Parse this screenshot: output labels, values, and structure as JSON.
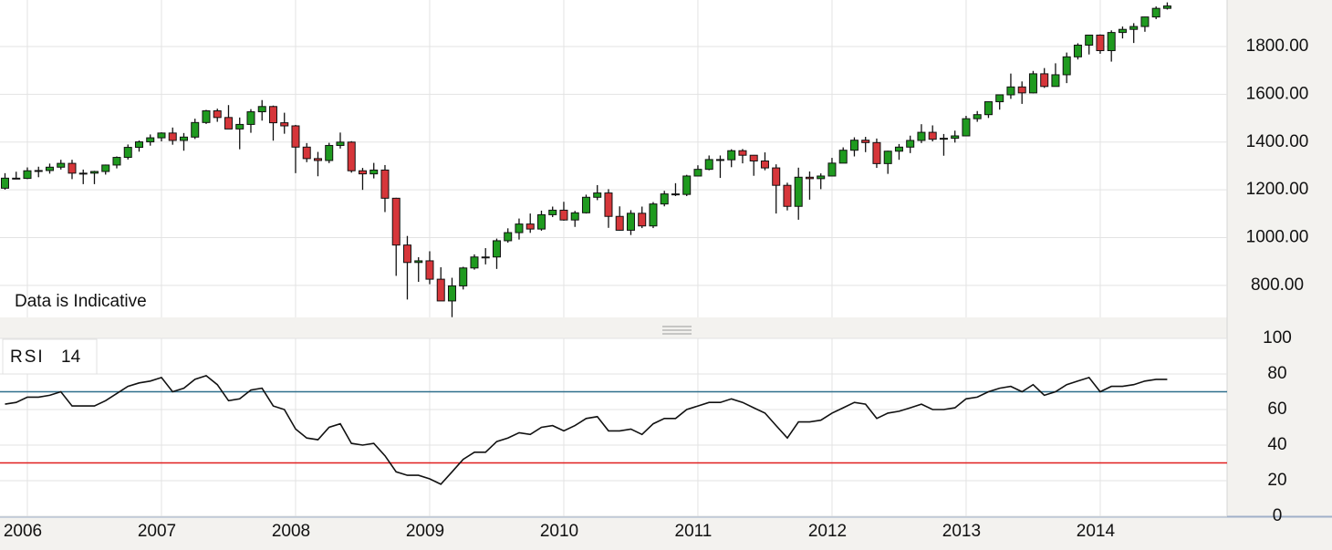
{
  "chart_data": [
    {
      "type": "candlestick",
      "annotation": "Data is Indicative",
      "x": [
        "2005-11",
        "2005-12",
        "2006-01",
        "2006-02",
        "2006-03",
        "2006-04",
        "2006-05",
        "2006-06",
        "2006-07",
        "2006-08",
        "2006-09",
        "2006-10",
        "2006-11",
        "2006-12",
        "2007-01",
        "2007-02",
        "2007-03",
        "2007-04",
        "2007-05",
        "2007-06",
        "2007-07",
        "2007-08",
        "2007-09",
        "2007-10",
        "2007-11",
        "2007-12",
        "2008-01",
        "2008-02",
        "2008-03",
        "2008-04",
        "2008-05",
        "2008-06",
        "2008-07",
        "2008-08",
        "2008-09",
        "2008-10",
        "2008-11",
        "2008-12",
        "2009-01",
        "2009-02",
        "2009-03",
        "2009-04",
        "2009-05",
        "2009-06",
        "2009-07",
        "2009-08",
        "2009-09",
        "2009-10",
        "2009-11",
        "2009-12",
        "2010-01",
        "2010-02",
        "2010-03",
        "2010-04",
        "2010-05",
        "2010-06",
        "2010-07",
        "2010-08",
        "2010-09",
        "2010-10",
        "2010-11",
        "2010-12",
        "2011-01",
        "2011-02",
        "2011-03",
        "2011-04",
        "2011-05",
        "2011-06",
        "2011-07",
        "2011-08",
        "2011-09",
        "2011-10",
        "2011-11",
        "2011-12",
        "2012-01",
        "2012-02",
        "2012-03",
        "2012-04",
        "2012-05",
        "2012-06",
        "2012-07",
        "2012-08",
        "2012-09",
        "2012-10",
        "2012-11",
        "2012-12",
        "2013-01",
        "2013-02",
        "2013-03",
        "2013-04",
        "2013-05",
        "2013-06",
        "2013-07",
        "2013-08",
        "2013-09",
        "2013-10",
        "2013-11",
        "2013-12",
        "2014-01",
        "2014-02",
        "2014-03",
        "2014-04",
        "2014-05",
        "2014-06",
        "2014-07"
      ],
      "open": [
        1207,
        1249,
        1248,
        1280,
        1281,
        1295,
        1311,
        1270,
        1270,
        1277,
        1304,
        1336,
        1378,
        1401,
        1418,
        1438,
        1407,
        1421,
        1482,
        1531,
        1503,
        1455,
        1474,
        1527,
        1549,
        1481,
        1468,
        1379,
        1331,
        1323,
        1386,
        1400,
        1280,
        1267,
        1283,
        1165,
        969,
        896,
        903,
        826,
        735,
        798,
        873,
        919,
        919,
        987,
        1021,
        1057,
        1036,
        1096,
        1115,
        1074,
        1104,
        1169,
        1187,
        1089,
        1031,
        1102,
        1049,
        1141,
        1183,
        1181,
        1258,
        1286,
        1327,
        1326,
        1364,
        1345,
        1321,
        1292,
        1219,
        1131,
        1253,
        1247,
        1258,
        1312,
        1366,
        1408,
        1398,
        1310,
        1362,
        1379,
        1407,
        1441,
        1412,
        1416,
        1426,
        1498,
        1515,
        1569,
        1598,
        1631,
        1606,
        1686,
        1633,
        1682,
        1757,
        1806,
        1848,
        1783,
        1859,
        1872,
        1884,
        1924,
        1960
      ],
      "high": [
        1270,
        1276,
        1294,
        1297,
        1310,
        1326,
        1326,
        1285,
        1280,
        1306,
        1340,
        1390,
        1407,
        1432,
        1441,
        1461,
        1438,
        1498,
        1535,
        1540,
        1555,
        1503,
        1538,
        1576,
        1553,
        1523,
        1472,
        1396,
        1359,
        1397,
        1440,
        1404,
        1292,
        1313,
        1304,
        1167,
        1007,
        918,
        943,
        876,
        832,
        878,
        930,
        956,
        996,
        1039,
        1080,
        1101,
        1113,
        1130,
        1150,
        1112,
        1180,
        1220,
        1203,
        1131,
        1115,
        1130,
        1149,
        1196,
        1228,
        1263,
        1303,
        1344,
        1344,
        1370,
        1371,
        1346,
        1357,
        1307,
        1230,
        1293,
        1277,
        1269,
        1334,
        1378,
        1420,
        1422,
        1415,
        1364,
        1392,
        1427,
        1475,
        1470,
        1434,
        1448,
        1510,
        1530,
        1570,
        1598,
        1687,
        1654,
        1698,
        1710,
        1730,
        1775,
        1814,
        1849,
        1851,
        1868,
        1884,
        1898,
        1925,
        1968,
        1985
      ],
      "low": [
        1201,
        1246,
        1245,
        1253,
        1268,
        1285,
        1245,
        1224,
        1224,
        1264,
        1290,
        1327,
        1360,
        1385,
        1403,
        1389,
        1364,
        1413,
        1476,
        1485,
        1455,
        1370,
        1439,
        1490,
        1406,
        1435,
        1270,
        1316,
        1257,
        1312,
        1373,
        1272,
        1200,
        1248,
        1107,
        840,
        741,
        815,
        805,
        735,
        667,
        783,
        866,
        888,
        869,
        979,
        992,
        1020,
        1029,
        1086,
        1071,
        1045,
        1101,
        1157,
        1041,
        1029,
        1011,
        1040,
        1040,
        1131,
        1174,
        1174,
        1257,
        1282,
        1250,
        1295,
        1311,
        1259,
        1282,
        1101,
        1114,
        1075,
        1159,
        1203,
        1258,
        1312,
        1340,
        1358,
        1292,
        1267,
        1326,
        1354,
        1396,
        1403,
        1343,
        1398,
        1426,
        1485,
        1501,
        1536,
        1581,
        1560,
        1604,
        1627,
        1633,
        1647,
        1746,
        1767,
        1770,
        1737,
        1834,
        1815,
        1862,
        1915,
        1955
      ],
      "close": [
        1249,
        1248,
        1280,
        1281,
        1295,
        1311,
        1270,
        1270,
        1277,
        1304,
        1336,
        1378,
        1401,
        1418,
        1438,
        1407,
        1421,
        1482,
        1531,
        1503,
        1455,
        1474,
        1527,
        1549,
        1481,
        1468,
        1379,
        1331,
        1323,
        1386,
        1400,
        1280,
        1267,
        1283,
        1165,
        969,
        896,
        903,
        826,
        735,
        798,
        873,
        919,
        919,
        987,
        1021,
        1057,
        1036,
        1096,
        1115,
        1074,
        1104,
        1169,
        1187,
        1089,
        1031,
        1102,
        1049,
        1141,
        1183,
        1181,
        1258,
        1286,
        1327,
        1326,
        1364,
        1345,
        1321,
        1292,
        1219,
        1131,
        1253,
        1247,
        1258,
        1312,
        1366,
        1408,
        1398,
        1310,
        1362,
        1379,
        1407,
        1441,
        1412,
        1416,
        1426,
        1498,
        1515,
        1569,
        1598,
        1631,
        1606,
        1686,
        1633,
        1682,
        1757,
        1806,
        1848,
        1783,
        1859,
        1872,
        1884,
        1924,
        1960,
        1970
      ],
      "up_color": "#1f9a1f",
      "down_color": "#d6363a",
      "xlim": [
        2005.796,
        2014.946
      ],
      "ylim": [
        666,
        1995
      ],
      "yticks": [
        {
          "value": 800,
          "label": "800.00"
        },
        {
          "value": 1000,
          "label": "1000.00"
        },
        {
          "value": 1200,
          "label": "1200.00"
        },
        {
          "value": 1400,
          "label": "1400.00"
        },
        {
          "value": 1600,
          "label": "1600.00"
        },
        {
          "value": 1800,
          "label": "1800.00"
        }
      ],
      "grid": true
    },
    {
      "type": "line",
      "name": "RSI",
      "period": 14,
      "color": "#111111",
      "values": [
        63,
        64,
        67,
        67,
        68,
        70,
        62,
        62,
        62,
        65,
        69,
        73,
        75,
        76,
        78,
        70,
        72,
        77,
        79,
        74,
        65,
        66,
        71,
        72,
        62,
        60,
        49,
        44,
        43,
        50,
        52,
        41,
        40,
        41,
        34,
        25,
        23,
        23,
        21,
        18,
        25,
        32,
        36,
        36,
        42,
        44,
        47,
        46,
        50,
        51,
        48,
        51,
        55,
        56,
        48,
        48,
        49,
        46,
        52,
        55,
        55,
        60,
        62,
        64,
        64,
        66,
        64,
        61,
        58,
        51,
        44,
        53,
        53,
        54,
        58,
        61,
        64,
        63,
        55,
        58,
        59,
        61,
        63,
        60,
        60,
        61,
        66,
        67,
        70,
        72,
        73,
        70,
        74,
        68,
        70,
        74,
        76,
        78,
        70,
        73,
        73,
        74,
        76,
        77,
        77
      ],
      "levels": [
        {
          "value": 70,
          "color": "#2f6f8c"
        },
        {
          "value": 30,
          "color": "#e01e1e"
        }
      ],
      "xlim": [
        2005.796,
        2014.946
      ],
      "xticks": [
        2006,
        2007,
        2008,
        2009,
        2010,
        2011,
        2012,
        2013,
        2014
      ],
      "ylim": [
        0,
        100
      ],
      "yticks": [
        0,
        20,
        40,
        60,
        80,
        100
      ],
      "grid": true
    }
  ]
}
